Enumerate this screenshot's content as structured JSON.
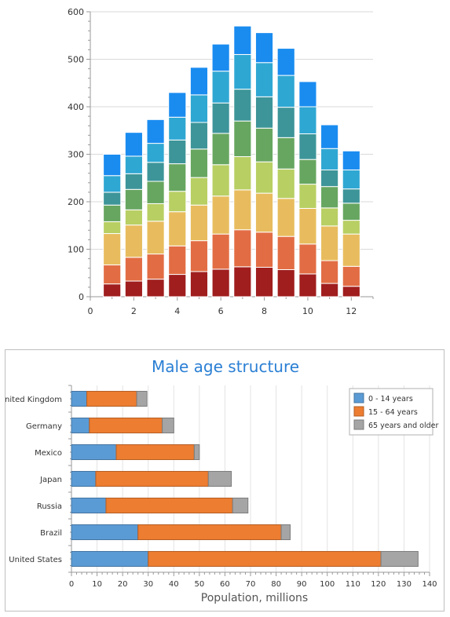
{
  "chart_data": [
    {
      "type": "bar",
      "stacked": true,
      "title": "",
      "xlabel": "",
      "ylabel": "",
      "x": [
        1,
        2,
        3,
        4,
        5,
        6,
        7,
        8,
        9,
        10,
        11,
        12
      ],
      "xlim": [
        0,
        13
      ],
      "ylim": [
        0,
        600
      ],
      "xticks": [
        "0",
        "2",
        "4",
        "6",
        "8",
        "10",
        "12"
      ],
      "yticks": [
        "0",
        "100",
        "200",
        "300",
        "400",
        "500",
        "600"
      ],
      "grid": true,
      "series": [
        {
          "color": "#a01e1e",
          "values": [
            27,
            33,
            37,
            47,
            53,
            58,
            63,
            62,
            57,
            48,
            28,
            22
          ]
        },
        {
          "color": "#e26d44",
          "values": [
            40,
            50,
            53,
            60,
            65,
            74,
            78,
            74,
            70,
            63,
            48,
            42
          ]
        },
        {
          "color": "#e8bc5e",
          "values": [
            66,
            68,
            69,
            72,
            75,
            80,
            84,
            82,
            80,
            75,
            73,
            68
          ]
        },
        {
          "color": "#b8cf63",
          "values": [
            25,
            32,
            37,
            43,
            58,
            66,
            70,
            66,
            62,
            51,
            38,
            29
          ]
        },
        {
          "color": "#67a660",
          "values": [
            35,
            43,
            47,
            58,
            60,
            66,
            75,
            71,
            66,
            52,
            45,
            36
          ]
        },
        {
          "color": "#3d9599",
          "values": [
            27,
            33,
            40,
            50,
            56,
            64,
            67,
            66,
            64,
            54,
            35,
            30
          ]
        },
        {
          "color": "#2fa7d3",
          "values": [
            35,
            37,
            40,
            48,
            58,
            67,
            73,
            72,
            67,
            57,
            45,
            40
          ]
        },
        {
          "color": "#1a8cf0",
          "values": [
            45,
            50,
            50,
            52,
            58,
            57,
            60,
            63,
            57,
            53,
            50,
            40
          ]
        }
      ]
    },
    {
      "type": "bar",
      "orientation": "horizontal",
      "stacked": true,
      "title": "Male age structure",
      "xlabel": "Population, millions",
      "ylabel": "",
      "categories": [
        "United Kingdom",
        "Germany",
        "Mexico",
        "Japan",
        "Russia",
        "Brazil",
        "United States"
      ],
      "xlim": [
        0,
        140
      ],
      "xticks": [
        "0",
        "10",
        "20",
        "30",
        "40",
        "50",
        "60",
        "70",
        "80",
        "90",
        "100",
        "110",
        "120",
        "130",
        "140"
      ],
      "grid": true,
      "legend_position": "top-right",
      "series": [
        {
          "name": "0 - 14 years",
          "color": "#5b9bd5",
          "values": [
            6,
            7,
            17.5,
            9.5,
            13.5,
            26,
            30
          ]
        },
        {
          "name": "15 - 64 years",
          "color": "#ed7d31",
          "values": [
            19.5,
            28.5,
            30.5,
            44,
            49.5,
            56,
            91
          ]
        },
        {
          "name": "65 years and older",
          "color": "#a5a5a5",
          "values": [
            4,
            4.5,
            2,
            9,
            6,
            3.5,
            14.5
          ]
        }
      ]
    }
  ]
}
